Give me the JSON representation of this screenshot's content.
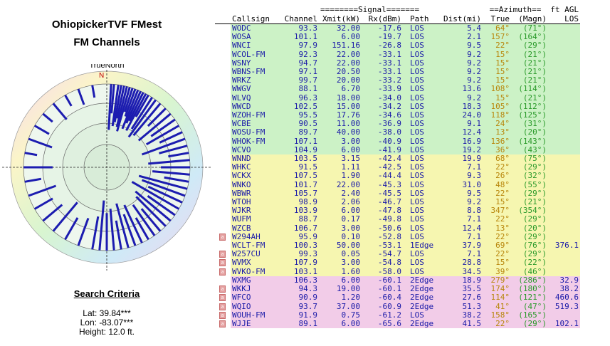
{
  "header": {
    "title": "OhiopickerTVF FMest",
    "subtitle": "FM Channels"
  },
  "compass": {
    "north_label": "TrueNorth",
    "n_marker": "N",
    "bearings_deg": [
      3,
      5,
      8,
      10,
      12,
      14,
      16,
      18,
      20,
      22,
      24,
      26,
      28,
      30,
      33,
      36,
      40,
      45,
      50,
      55,
      60,
      65,
      70,
      75,
      80,
      85,
      90,
      95,
      100,
      105,
      110,
      115,
      120,
      125,
      130,
      135,
      140,
      145,
      150,
      155,
      160,
      165,
      170,
      175,
      180,
      185,
      190,
      200,
      210,
      220,
      230,
      240,
      250,
      260,
      270,
      280,
      290,
      300,
      310,
      320,
      330,
      340,
      350
    ],
    "ray_lengths": [
      0.55,
      0.35,
      0.5,
      0.45,
      0.4,
      0.5,
      0.55,
      0.3,
      0.35,
      0.5,
      0.42,
      0.38,
      0.5,
      0.3,
      0.45,
      0.55,
      0.5,
      0.3,
      0.5,
      0.35,
      0.45,
      0.3,
      0.55,
      0.35,
      0.25,
      0.5,
      0.35,
      0.45,
      0.3,
      0.6,
      0.55,
      0.45,
      0.65,
      0.4,
      0.55,
      0.5,
      0.35,
      0.45,
      0.3,
      0.5,
      0.4,
      0.55,
      0.35,
      0.5,
      0.45,
      0.6,
      0.4,
      0.35,
      0.3,
      0.45,
      0.3,
      0.25,
      0.35,
      0.2,
      0.35,
      0.15,
      0.3,
      0.2,
      0.15,
      0.25,
      0.15,
      0.2,
      0.15
    ]
  },
  "search": {
    "heading": "Search Criteria",
    "lat": "Lat: 39.84***",
    "lon": "Lon: -83.07***",
    "height": "Height: 12.0 ft."
  },
  "table": {
    "group_headers": {
      "signal": "========Signal=======",
      "azimuth": "==Azimuth==",
      "ft_agl": "ft AGL"
    },
    "columns": [
      "Callsign",
      "Channel",
      "Xmit(kW)",
      "Rx(dBm)",
      "Path",
      "Dist(mi)",
      "True",
      "(Magn)",
      "LOS"
    ],
    "rows": [
      {
        "call": "WODC",
        "ch": "93.3",
        "kw": "32.00",
        "rx": "-17.6",
        "path": "LOS",
        "dist": "5.4",
        "tru": "64°",
        "mag": "(71°)",
        "los": "",
        "flag": "",
        "band": "g"
      },
      {
        "call": "WOSA",
        "ch": "101.1",
        "kw": "6.00",
        "rx": "-19.7",
        "path": "LOS",
        "dist": "2.1",
        "tru": "157°",
        "mag": "(164°)",
        "los": "",
        "flag": "",
        "band": "g"
      },
      {
        "call": "WNCI",
        "ch": "97.9",
        "kw": "151.16",
        "rx": "-26.8",
        "path": "LOS",
        "dist": "9.5",
        "tru": "22°",
        "mag": "(29°)",
        "los": "",
        "flag": "",
        "band": "g"
      },
      {
        "call": "WCOL-FM",
        "ch": "92.3",
        "kw": "22.00",
        "rx": "-33.1",
        "path": "LOS",
        "dist": "9.2",
        "tru": "15°",
        "mag": "(21°)",
        "los": "",
        "flag": "",
        "band": "g"
      },
      {
        "call": "WSNY",
        "ch": "94.7",
        "kw": "22.00",
        "rx": "-33.1",
        "path": "LOS",
        "dist": "9.2",
        "tru": "15°",
        "mag": "(21°)",
        "los": "",
        "flag": "",
        "band": "g"
      },
      {
        "call": "WBNS-FM",
        "ch": "97.1",
        "kw": "20.50",
        "rx": "-33.1",
        "path": "LOS",
        "dist": "9.2",
        "tru": "15°",
        "mag": "(21°)",
        "los": "",
        "flag": "",
        "band": "g"
      },
      {
        "call": "WRKZ",
        "ch": "99.7",
        "kw": "20.00",
        "rx": "-33.2",
        "path": "LOS",
        "dist": "9.2",
        "tru": "15°",
        "mag": "(21°)",
        "los": "",
        "flag": "",
        "band": "g"
      },
      {
        "call": "WWGV",
        "ch": "88.1",
        "kw": "6.70",
        "rx": "-33.9",
        "path": "LOS",
        "dist": "13.6",
        "tru": "108°",
        "mag": "(114°)",
        "los": "",
        "flag": "",
        "band": "g"
      },
      {
        "call": "WLVQ",
        "ch": "96.3",
        "kw": "18.00",
        "rx": "-34.0",
        "path": "LOS",
        "dist": "9.2",
        "tru": "15°",
        "mag": "(21°)",
        "los": "",
        "flag": "",
        "band": "g"
      },
      {
        "call": "WWCD",
        "ch": "102.5",
        "kw": "15.00",
        "rx": "-34.2",
        "path": "LOS",
        "dist": "18.3",
        "tru": "105°",
        "mag": "(112°)",
        "los": "",
        "flag": "",
        "band": "g"
      },
      {
        "call": "WZOH-FM",
        "ch": "95.5",
        "kw": "17.76",
        "rx": "-34.6",
        "path": "LOS",
        "dist": "24.0",
        "tru": "118°",
        "mag": "(125°)",
        "los": "",
        "flag": "",
        "band": "g"
      },
      {
        "call": "WCBE",
        "ch": "90.5",
        "kw": "11.00",
        "rx": "-36.9",
        "path": "LOS",
        "dist": "9.1",
        "tru": "24°",
        "mag": "(31°)",
        "los": "",
        "flag": "",
        "band": "g"
      },
      {
        "call": "WOSU-FM",
        "ch": "89.7",
        "kw": "40.00",
        "rx": "-38.0",
        "path": "LOS",
        "dist": "12.4",
        "tru": "13°",
        "mag": "(20°)",
        "los": "",
        "flag": "",
        "band": "g"
      },
      {
        "call": "WHOK-FM",
        "ch": "107.1",
        "kw": "3.00",
        "rx": "-40.9",
        "path": "LOS",
        "dist": "16.9",
        "tru": "136°",
        "mag": "(143°)",
        "los": "",
        "flag": "",
        "band": "g"
      },
      {
        "call": "WCVO",
        "ch": "104.9",
        "kw": "6.00",
        "rx": "-41.9",
        "path": "LOS",
        "dist": "19.2",
        "tru": "36°",
        "mag": "(43°)",
        "los": "",
        "flag": "",
        "band": "g"
      },
      {
        "call": "WNND",
        "ch": "103.5",
        "kw": "3.15",
        "rx": "-42.4",
        "path": "LOS",
        "dist": "19.9",
        "tru": "68°",
        "mag": "(75°)",
        "los": "",
        "flag": "",
        "band": "y"
      },
      {
        "call": "WHKC",
        "ch": "91.5",
        "kw": "1.11",
        "rx": "-42.5",
        "path": "LOS",
        "dist": "7.1",
        "tru": "22°",
        "mag": "(29°)",
        "los": "",
        "flag": "",
        "band": "y"
      },
      {
        "call": "WCKX",
        "ch": "107.5",
        "kw": "1.90",
        "rx": "-44.4",
        "path": "LOS",
        "dist": "9.3",
        "tru": "26°",
        "mag": "(32°)",
        "los": "",
        "flag": "",
        "band": "y"
      },
      {
        "call": "WNKO",
        "ch": "101.7",
        "kw": "22.00",
        "rx": "-45.3",
        "path": "LOS",
        "dist": "31.0",
        "tru": "48°",
        "mag": "(55°)",
        "los": "",
        "flag": "",
        "band": "y"
      },
      {
        "call": "WBWR",
        "ch": "105.7",
        "kw": "2.40",
        "rx": "-45.5",
        "path": "LOS",
        "dist": "9.5",
        "tru": "22°",
        "mag": "(29°)",
        "los": "",
        "flag": "",
        "band": "y"
      },
      {
        "call": "WTOH",
        "ch": "98.9",
        "kw": "2.06",
        "rx": "-46.7",
        "path": "LOS",
        "dist": "9.2",
        "tru": "15°",
        "mag": "(21°)",
        "los": "",
        "flag": "",
        "band": "y"
      },
      {
        "call": "WJKR",
        "ch": "103.9",
        "kw": "6.00",
        "rx": "-47.8",
        "path": "LOS",
        "dist": "8.8",
        "tru": "347°",
        "mag": "(354°)",
        "los": "",
        "flag": "",
        "band": "y"
      },
      {
        "call": "WUFM",
        "ch": "88.7",
        "kw": "0.17",
        "rx": "-49.8",
        "path": "LOS",
        "dist": "7.1",
        "tru": "22°",
        "mag": "(29°)",
        "los": "",
        "flag": "",
        "band": "y"
      },
      {
        "call": "WZCB",
        "ch": "106.7",
        "kw": "3.00",
        "rx": "-50.6",
        "path": "LOS",
        "dist": "12.4",
        "tru": "13°",
        "mag": "(20°)",
        "los": "",
        "flag": "",
        "band": "y"
      },
      {
        "call": "W294AH",
        "ch": "95.9",
        "kw": "0.10",
        "rx": "-52.8",
        "path": "LOS",
        "dist": "7.1",
        "tru": "22°",
        "mag": "(29°)",
        "los": "",
        "flag": "a",
        "band": "y"
      },
      {
        "call": "WCLT-FM",
        "ch": "100.3",
        "kw": "50.00",
        "rx": "-53.1",
        "path": "1Edge",
        "dist": "37.9",
        "tru": "69°",
        "mag": "(76°)",
        "los": "376.1",
        "flag": "",
        "band": "y"
      },
      {
        "call": "W257CU",
        "ch": "99.3",
        "kw": "0.05",
        "rx": "-54.7",
        "path": "LOS",
        "dist": "7.1",
        "tru": "22°",
        "mag": "(29°)",
        "los": "",
        "flag": "a",
        "band": "y"
      },
      {
        "call": "WVMX",
        "ch": "107.9",
        "kw": "3.00",
        "rx": "-54.8",
        "path": "LOS",
        "dist": "28.8",
        "tru": "15°",
        "mag": "(22°)",
        "los": "",
        "flag": "a",
        "band": "y"
      },
      {
        "call": "WVKO-FM",
        "ch": "103.1",
        "kw": "1.60",
        "rx": "-58.0",
        "path": "LOS",
        "dist": "34.5",
        "tru": "39°",
        "mag": "(46°)",
        "los": "",
        "flag": "a",
        "band": "y"
      },
      {
        "call": "WXMG",
        "ch": "106.3",
        "kw": "6.00",
        "rx": "-60.1",
        "path": "2Edge",
        "dist": "18.9",
        "tru": "279°",
        "mag": "(286°)",
        "los": "32.9",
        "flag": "",
        "band": "p"
      },
      {
        "call": "WKKJ",
        "ch": "94.3",
        "kw": "19.00",
        "rx": "-60.1",
        "path": "2Edge",
        "dist": "35.5",
        "tru": "174°",
        "mag": "(180°)",
        "los": "38.2",
        "flag": "a",
        "band": "p"
      },
      {
        "call": "WFCO",
        "ch": "90.9",
        "kw": "1.20",
        "rx": "-60.4",
        "path": "2Edge",
        "dist": "27.6",
        "tru": "114°",
        "mag": "(121°)",
        "los": "460.6",
        "flag": "a",
        "band": "p"
      },
      {
        "call": "WQIO",
        "ch": "93.7",
        "kw": "37.00",
        "rx": "-60.9",
        "path": "2Edge",
        "dist": "51.3",
        "tru": "41°",
        "mag": "(47°)",
        "los": "519.3",
        "flag": "a",
        "band": "p"
      },
      {
        "call": "WOUH-FM",
        "ch": "91.9",
        "kw": "0.75",
        "rx": "-61.2",
        "path": "LOS",
        "dist": "38.2",
        "tru": "158°",
        "mag": "(165°)",
        "los": "",
        "flag": "a",
        "band": "p"
      },
      {
        "call": "WJJE",
        "ch": "89.1",
        "kw": "6.00",
        "rx": "-65.6",
        "path": "2Edge",
        "dist": "41.5",
        "tru": "22°",
        "mag": "(29°)",
        "los": "102.1",
        "flag": "a",
        "band": "p"
      }
    ]
  }
}
